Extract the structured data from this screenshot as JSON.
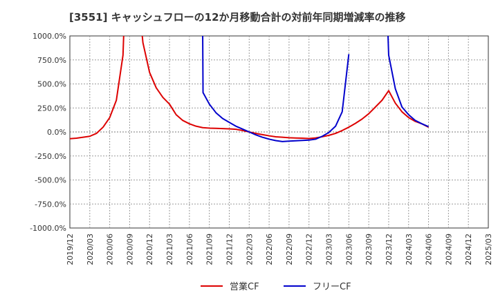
{
  "chart_data": {
    "type": "line",
    "title": "[3551]  キャッシュフローの12か月移動合計の対前年同期増減率の推移",
    "xlabel": "",
    "ylabel": "",
    "ylim": [
      -1000,
      1000
    ],
    "y_ticks": [
      "1000.0%",
      "750.0%",
      "500.0%",
      "250.0%",
      "0.0%",
      "-250.0%",
      "-500.0%",
      "-750.0%",
      "-1000.0%"
    ],
    "y_tick_values": [
      1000,
      750,
      500,
      250,
      0,
      -250,
      -500,
      -750,
      -1000
    ],
    "x_ticks": [
      "2019/12",
      "2020/03",
      "2020/06",
      "2020/09",
      "2020/12",
      "2021/03",
      "2021/06",
      "2021/09",
      "2021/12",
      "2022/03",
      "2022/06",
      "2022/09",
      "2022/12",
      "2023/03",
      "2023/06",
      "2023/09",
      "2023/12",
      "2024/03",
      "2024/06",
      "2024/09",
      "2024/12",
      "2025/03"
    ],
    "x_range_months": [
      0,
      63
    ],
    "grid": true,
    "legend_position": "bottom-center",
    "series": [
      {
        "name": "営業CF",
        "color": "#dd0000",
        "points": [
          [
            0,
            -70
          ],
          [
            1,
            -65
          ],
          [
            2,
            -55
          ],
          [
            3,
            -45
          ],
          [
            4,
            -15
          ],
          [
            5,
            50
          ],
          [
            6,
            150
          ],
          [
            7,
            330
          ],
          [
            8,
            800
          ],
          [
            8.1,
            1000
          ],
          [
            null,
            null
          ],
          [
            10.9,
            1000
          ],
          [
            11,
            930
          ],
          [
            12,
            620
          ],
          [
            13,
            460
          ],
          [
            14,
            360
          ],
          [
            15,
            290
          ],
          [
            16,
            180
          ],
          [
            17,
            120
          ],
          [
            18,
            85
          ],
          [
            19,
            60
          ],
          [
            20,
            45
          ],
          [
            21,
            40
          ],
          [
            22,
            38
          ],
          [
            23,
            35
          ],
          [
            24,
            32
          ],
          [
            25,
            28
          ],
          [
            26,
            15
          ],
          [
            27,
            0
          ],
          [
            28,
            -15
          ],
          [
            29,
            -28
          ],
          [
            30,
            -40
          ],
          [
            31,
            -50
          ],
          [
            32,
            -55
          ],
          [
            33,
            -60
          ],
          [
            34,
            -63
          ],
          [
            35,
            -65
          ],
          [
            36,
            -68
          ],
          [
            37,
            -62
          ],
          [
            38,
            -50
          ],
          [
            39,
            -35
          ],
          [
            40,
            -15
          ],
          [
            41,
            15
          ],
          [
            42,
            50
          ],
          [
            43,
            90
          ],
          [
            44,
            135
          ],
          [
            45,
            190
          ],
          [
            46,
            260
          ],
          [
            47,
            330
          ],
          [
            48,
            430
          ],
          [
            49,
            300
          ],
          [
            50,
            210
          ],
          [
            51,
            150
          ],
          [
            52,
            110
          ],
          [
            53,
            85
          ],
          [
            54,
            50
          ]
        ]
      },
      {
        "name": "フリーCF",
        "color": "#0000cc",
        "points": [
          [
            20,
            1000
          ],
          [
            20.05,
            410
          ],
          [
            21,
            290
          ],
          [
            22,
            200
          ],
          [
            23,
            140
          ],
          [
            24,
            100
          ],
          [
            25,
            60
          ],
          [
            26,
            30
          ],
          [
            27,
            0
          ],
          [
            28,
            -30
          ],
          [
            29,
            -55
          ],
          [
            30,
            -75
          ],
          [
            31,
            -90
          ],
          [
            32,
            -100
          ],
          [
            33,
            -95
          ],
          [
            34,
            -92
          ],
          [
            35,
            -88
          ],
          [
            36,
            -85
          ],
          [
            37,
            -75
          ],
          [
            38,
            -45
          ],
          [
            39,
            -5
          ],
          [
            40,
            60
          ],
          [
            41,
            210
          ],
          [
            42,
            810
          ],
          [
            null,
            null
          ],
          [
            47.9,
            1000
          ],
          [
            48,
            800
          ],
          [
            49,
            450
          ],
          [
            50,
            260
          ],
          [
            51,
            180
          ],
          [
            52,
            120
          ],
          [
            53,
            85
          ],
          [
            54,
            55
          ]
        ]
      }
    ]
  }
}
